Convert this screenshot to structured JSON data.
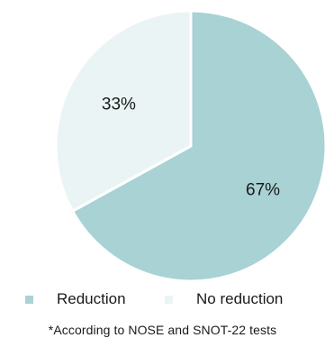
{
  "chart_data": {
    "type": "pie",
    "slices": [
      {
        "label": "Reduction",
        "value": 67,
        "value_label": "67%",
        "color": "#a8d2d4"
      },
      {
        "label": "No reduction",
        "value": 33,
        "value_label": "33%",
        "color": "#eaf4f4"
      }
    ],
    "start_angle_deg": 0,
    "direction": "clockwise",
    "legend_position": "bottom",
    "footnote": "*According to NOSE and SNOT-22 tests"
  }
}
